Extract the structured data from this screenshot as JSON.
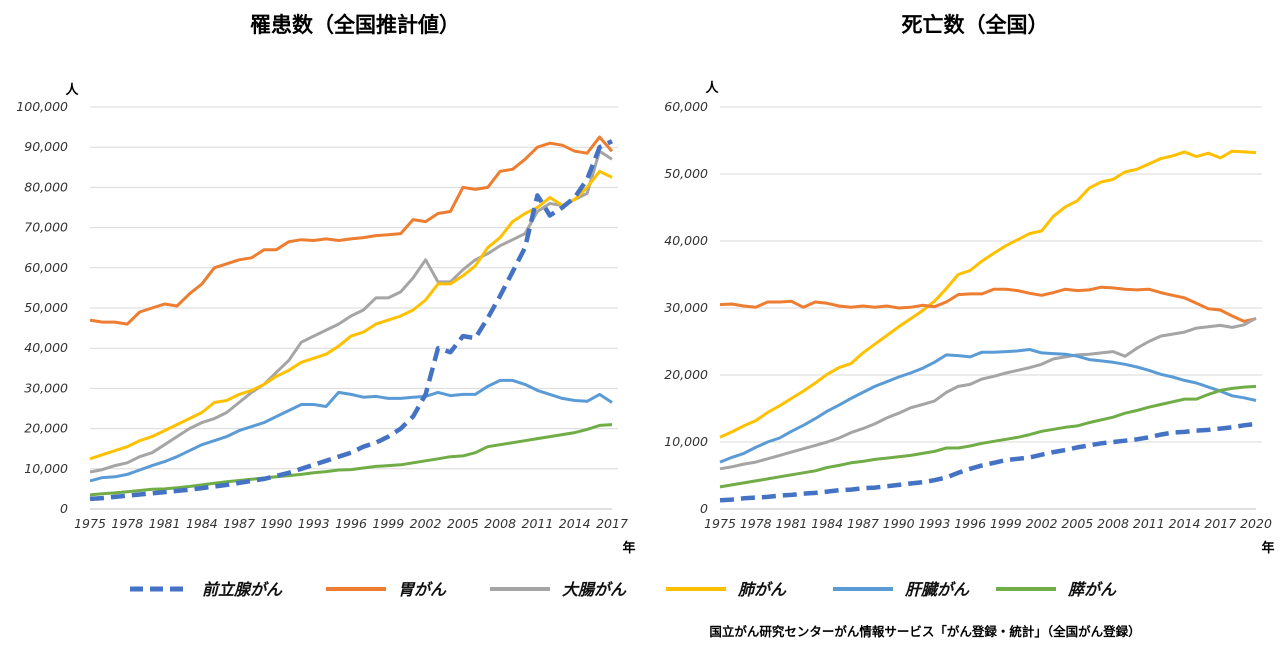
{
  "colors": {
    "prostate": "#4472C4",
    "stomach": "#ED7D31",
    "colorectal": "#A5A5A5",
    "lung": "#FFC000",
    "liver": "#5B9BD5",
    "pancreas": "#70AD47"
  },
  "legend": [
    {
      "key": "prostate",
      "label": "前立腺がん",
      "dashed": true
    },
    {
      "key": "stomach",
      "label": "胃がん",
      "dashed": false
    },
    {
      "key": "colorectal",
      "label": "大腸がん",
      "dashed": false
    },
    {
      "key": "lung",
      "label": "肺がん",
      "dashed": false
    },
    {
      "key": "liver",
      "label": "肝臓がん",
      "dashed": false
    },
    {
      "key": "pancreas",
      "label": "膵がん",
      "dashed": false
    }
  ],
  "source": "国立がん研究センターがん情報サービス「がん登録・統計」（全国がん登録）",
  "chart_data": [
    {
      "type": "line",
      "title": "罹患数（全国推計値）",
      "y_unit": "人",
      "x_unit": "年",
      "ylim": [
        0,
        100000
      ],
      "y_ticks": [
        "0",
        "10,000",
        "20,000",
        "30,000",
        "40,000",
        "50,000",
        "60,000",
        "70,000",
        "80,000",
        "90,000",
        "100,000"
      ],
      "x_tick_labels": [
        "1975",
        "1978",
        "1981",
        "1984",
        "1987",
        "1990",
        "1993",
        "1996",
        "1999",
        "2002",
        "2005",
        "2008",
        "2011",
        "2014",
        "2017"
      ],
      "x_start": 1975,
      "x_end": 2017,
      "series": [
        {
          "key": "stomach",
          "values": [
            47000,
            46500,
            46500,
            46000,
            49000,
            50000,
            51000,
            50500,
            53500,
            56000,
            60000,
            61000,
            62000,
            62500,
            64500,
            64500,
            66500,
            67000,
            66800,
            67200,
            66800,
            67200,
            67500,
            68000,
            68200,
            68500,
            72000,
            71500,
            73500,
            74000,
            80000,
            79500,
            80000,
            84000,
            84500,
            87000,
            90000,
            91000,
            90500,
            89000,
            88500,
            92500,
            89000
          ]
        },
        {
          "key": "colorectal",
          "values": [
            9200,
            9800,
            10800,
            11500,
            13000,
            14000,
            16000,
            18000,
            20000,
            21500,
            22500,
            24000,
            26500,
            29000,
            31000,
            34000,
            37000,
            41500,
            43000,
            44500,
            46000,
            48000,
            49500,
            52500,
            52500,
            54000,
            57500,
            62000,
            56500,
            56500,
            59500,
            62000,
            63500,
            65500,
            67000,
            68500,
            74000,
            76000,
            75500,
            77000,
            78500,
            89000,
            87000
          ]
        },
        {
          "key": "lung",
          "values": [
            12500,
            13500,
            14500,
            15500,
            17000,
            18000,
            19500,
            21000,
            22500,
            24000,
            26500,
            27000,
            28500,
            29500,
            31000,
            33000,
            34500,
            36500,
            37500,
            38500,
            40500,
            43000,
            44000,
            46000,
            47000,
            48000,
            49500,
            52000,
            56000,
            56000,
            58000,
            60500,
            65000,
            67500,
            71500,
            73500,
            75000,
            77500,
            75500,
            77000,
            80000,
            84000,
            82500
          ]
        },
        {
          "key": "liver",
          "values": [
            7000,
            7800,
            8000,
            8600,
            9700,
            10800,
            11800,
            13000,
            14500,
            16000,
            17000,
            18000,
            19500,
            20500,
            21500,
            23000,
            24500,
            26000,
            26000,
            25500,
            29000,
            28500,
            27800,
            28000,
            27500,
            27500,
            27800,
            28000,
            29000,
            28200,
            28500,
            28500,
            30500,
            32000,
            32000,
            31000,
            29500,
            28500,
            27500,
            27000,
            26800,
            28500,
            26500
          ]
        },
        {
          "key": "pancreas",
          "values": [
            3500,
            3800,
            4000,
            4300,
            4600,
            4900,
            5000,
            5300,
            5600,
            6000,
            6400,
            6800,
            7100,
            7400,
            7700,
            8000,
            8300,
            8600,
            9000,
            9300,
            9700,
            9800,
            10200,
            10600,
            10800,
            11000,
            11500,
            12000,
            12500,
            13000,
            13200,
            14000,
            15500,
            16000,
            16500,
            17000,
            17500,
            18000,
            18500,
            19000,
            19800,
            20800,
            21000
          ]
        },
        {
          "key": "prostate",
          "values": [
            2500,
            2700,
            3000,
            3300,
            3600,
            3900,
            4200,
            4500,
            4800,
            5200,
            5600,
            6000,
            6500,
            7000,
            7500,
            8200,
            9000,
            10000,
            11000,
            12000,
            13000,
            14000,
            15500,
            16500,
            18000,
            20000,
            23000,
            28500,
            40000,
            39000,
            43000,
            42500,
            47500,
            53000,
            59000,
            65000,
            78000,
            73000,
            75000,
            77500,
            82000,
            90000,
            91500
          ]
        }
      ]
    },
    {
      "type": "line",
      "title": "死亡数（全国）",
      "y_unit": "人",
      "x_unit": "年",
      "ylim": [
        0,
        60000
      ],
      "y_ticks": [
        "0",
        "10,000",
        "20,000",
        "30,000",
        "40,000",
        "50,000",
        "60,000"
      ],
      "x_tick_labels": [
        "1975",
        "1978",
        "1981",
        "1984",
        "1987",
        "1990",
        "1993",
        "1996",
        "1999",
        "2002",
        "2005",
        "2008",
        "2011",
        "2014",
        "2017",
        "2020"
      ],
      "x_start": 1975,
      "x_end": 2020,
      "series": [
        {
          "key": "lung",
          "values": [
            10700,
            11500,
            12400,
            13200,
            14400,
            15400,
            16500,
            17600,
            18800,
            20100,
            21100,
            21700,
            23300,
            24600,
            25900,
            27200,
            28400,
            29600,
            31000,
            32900,
            35000,
            35600,
            37000,
            38200,
            39300,
            40200,
            41100,
            41500,
            43700,
            45100,
            46000,
            47900,
            48800,
            49200,
            50300,
            50700,
            51500,
            52300,
            52700,
            53300,
            52600,
            53100,
            52400,
            53400,
            53300,
            53200
          ]
        },
        {
          "key": "stomach",
          "values": [
            30500,
            30600,
            30300,
            30100,
            30900,
            30900,
            31000,
            30100,
            30900,
            30700,
            30300,
            30100,
            30300,
            30100,
            30300,
            30000,
            30100,
            30400,
            30200,
            30900,
            32000,
            32100,
            32100,
            32800,
            32800,
            32600,
            32200,
            31900,
            32300,
            32800,
            32600,
            32700,
            33100,
            33000,
            32800,
            32700,
            32800,
            32300,
            31900,
            31500,
            30700,
            29900,
            29700,
            28800,
            28000,
            28400
          ]
        },
        {
          "key": "colorectal",
          "values": [
            6000,
            6300,
            6700,
            7000,
            7500,
            8000,
            8500,
            9000,
            9500,
            10000,
            10600,
            11400,
            12000,
            12700,
            13600,
            14300,
            15100,
            15600,
            16100,
            17400,
            18300,
            18600,
            19400,
            19800,
            20300,
            20700,
            21100,
            21600,
            22400,
            22700,
            23000,
            23100,
            23300,
            23500,
            22800,
            24000,
            25000,
            25800,
            26100,
            26400,
            27000,
            27200,
            27400,
            27100,
            27500,
            28500
          ]
        },
        {
          "key": "liver",
          "values": [
            7000,
            7700,
            8300,
            9200,
            10000,
            10600,
            11600,
            12500,
            13500,
            14600,
            15500,
            16500,
            17400,
            18300,
            19000,
            19700,
            20300,
            21000,
            21900,
            23000,
            22900,
            22700,
            23400,
            23400,
            23500,
            23600,
            23800,
            23300,
            23200,
            23100,
            22800,
            22300,
            22100,
            21900,
            21600,
            21200,
            20700,
            20100,
            19700,
            19200,
            18800,
            18200,
            17600,
            16900,
            16600,
            16200
          ]
        },
        {
          "key": "pancreas",
          "values": [
            3300,
            3600,
            3900,
            4200,
            4500,
            4800,
            5100,
            5400,
            5700,
            6200,
            6500,
            6900,
            7100,
            7400,
            7600,
            7800,
            8000,
            8300,
            8600,
            9100,
            9100,
            9400,
            9800,
            10100,
            10400,
            10700,
            11100,
            11600,
            11900,
            12200,
            12400,
            12900,
            13300,
            13700,
            14300,
            14700,
            15200,
            15600,
            16000,
            16400,
            16400,
            17100,
            17700,
            18000,
            18200,
            18300
          ]
        },
        {
          "key": "prostate",
          "values": [
            1300,
            1400,
            1600,
            1700,
            1800,
            2000,
            2100,
            2300,
            2400,
            2600,
            2800,
            2900,
            3100,
            3200,
            3400,
            3600,
            3800,
            4000,
            4300,
            4700,
            5400,
            6000,
            6500,
            6900,
            7300,
            7500,
            7700,
            8100,
            8500,
            8800,
            9200,
            9500,
            9800,
            10000,
            10200,
            10400,
            10700,
            11100,
            11400,
            11500,
            11700,
            11800,
            12000,
            12200,
            12500,
            12700
          ]
        }
      ]
    }
  ]
}
